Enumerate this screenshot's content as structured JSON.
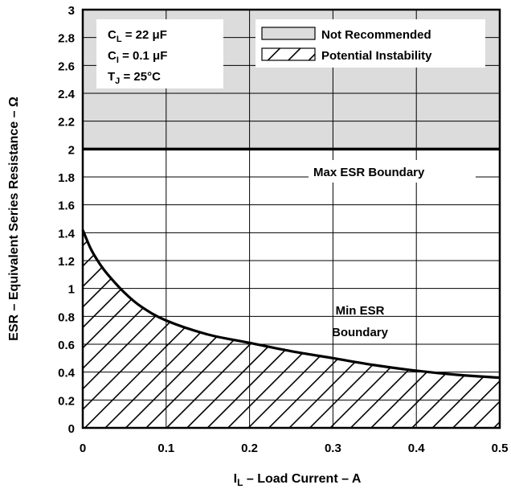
{
  "chart_data": {
    "type": "area",
    "xlabel": "I",
    "xlabel_sub": "L",
    "xlabel_rest": " – Load Current – A",
    "ylabel": "ESR – Equivalent Series Resistance – Ω",
    "xlim": [
      0,
      0.5
    ],
    "ylim": [
      0,
      3
    ],
    "x_ticks": [
      0,
      0.1,
      0.2,
      0.3,
      0.4,
      0.5
    ],
    "x_tick_labels": [
      "0",
      "0.1",
      "0.2",
      "0.3",
      "0.4",
      "0.5"
    ],
    "y_ticks": [
      0,
      0.2,
      0.4,
      0.6,
      0.8,
      1,
      1.2,
      1.4,
      1.6,
      1.8,
      2,
      2.2,
      2.4,
      2.6,
      2.8,
      3
    ],
    "y_tick_labels": [
      "0",
      "0.2",
      "0.4",
      "0.6",
      "0.8",
      "1",
      "1.2",
      "1.4",
      "1.6",
      "1.8",
      "2",
      "2.2",
      "2.4",
      "2.6",
      "2.8",
      "3"
    ],
    "grid": true,
    "conditions": [
      {
        "main": "C",
        "sub": "L",
        "rest": " = 22 μF"
      },
      {
        "main": "C",
        "sub": "I",
        "rest": " = 0.1 μF"
      },
      {
        "main": "T",
        "sub": "J",
        "rest": " = 25°C"
      }
    ],
    "legend": {
      "position": "top-right",
      "entries": [
        {
          "label": "Not Recommended",
          "style": "gray-fill"
        },
        {
          "label": "Potential Instability",
          "style": "hatched"
        }
      ]
    },
    "regions": [
      {
        "name": "Not Recommended",
        "style": "gray-fill",
        "y_from": 2,
        "y_to": 3
      },
      {
        "name": "Potential Instability",
        "style": "hatched",
        "below": "Min ESR Boundary"
      }
    ],
    "max_esr_boundary": {
      "label": "Max ESR Boundary",
      "value": 2
    },
    "min_esr_boundary": {
      "label_lines": [
        "Min ESR",
        "Boundary"
      ],
      "x": [
        0,
        0.01,
        0.02,
        0.03,
        0.05,
        0.07,
        0.1,
        0.15,
        0.2,
        0.25,
        0.3,
        0.35,
        0.4,
        0.45,
        0.5
      ],
      "y": [
        1.42,
        1.28,
        1.18,
        1.1,
        0.97,
        0.87,
        0.77,
        0.67,
        0.61,
        0.55,
        0.5,
        0.45,
        0.41,
        0.38,
        0.36
      ]
    }
  }
}
